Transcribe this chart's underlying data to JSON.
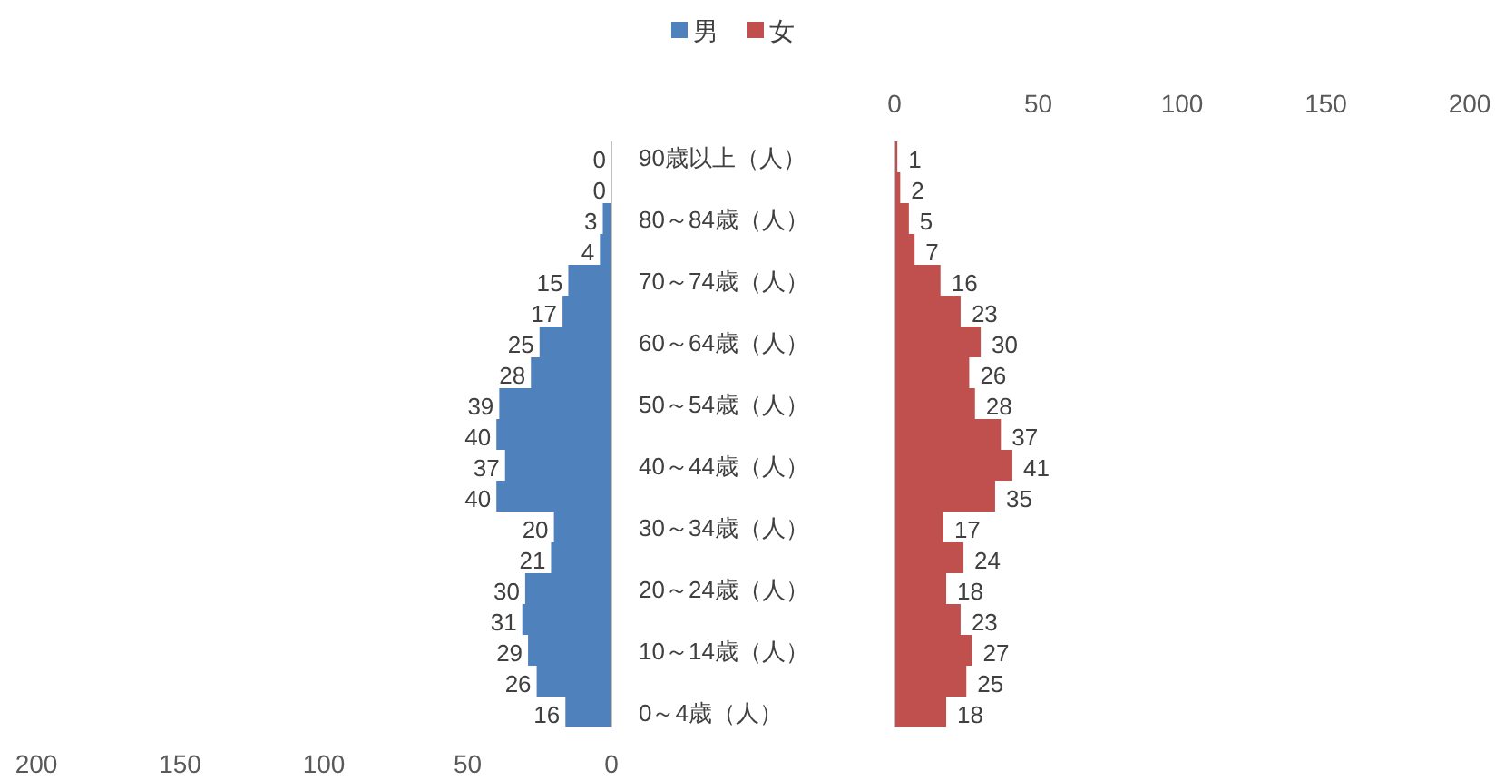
{
  "chart_data": [
    {
      "type": "bar",
      "orientation": "horizontal",
      "categories": [
        null,
        null,
        null,
        null,
        null,
        null,
        null,
        null,
        null,
        null,
        null,
        null,
        null,
        null,
        null,
        null,
        null,
        null,
        null
      ],
      "series": [
        {
          "name": "男",
          "color": "#4f81bd",
          "values": [
            0,
            0,
            3,
            4,
            15,
            17,
            25,
            28,
            39,
            40,
            37,
            40,
            20,
            21,
            30,
            31,
            29,
            26,
            16
          ]
        }
      ],
      "xlim": [
        200,
        0
      ],
      "xticks": [
        200,
        150,
        100,
        50,
        0
      ],
      "data_labels": true,
      "legend": "top"
    },
    {
      "type": "bar",
      "orientation": "horizontal",
      "categories": [
        "90歳以上（人）",
        null,
        "80～84歳（人）",
        null,
        "70～74歳（人）",
        null,
        "60～64歳（人）",
        null,
        "50～54歳（人）",
        null,
        "40～44歳（人）",
        null,
        "30～34歳（人）",
        null,
        "20～24歳（人）",
        null,
        "10～14歳（人）",
        null,
        "0～4歳（人）"
      ],
      "series": [
        {
          "name": "女",
          "color": "#c0504d",
          "values": [
            1,
            2,
            5,
            7,
            16,
            23,
            30,
            26,
            28,
            37,
            41,
            35,
            17,
            24,
            18,
            23,
            27,
            25,
            18
          ]
        }
      ],
      "x2lim": [
        0,
        200
      ],
      "x2ticks": [
        0,
        50,
        100,
        150,
        200
      ],
      "data_labels": true,
      "legend": "top"
    }
  ]
}
